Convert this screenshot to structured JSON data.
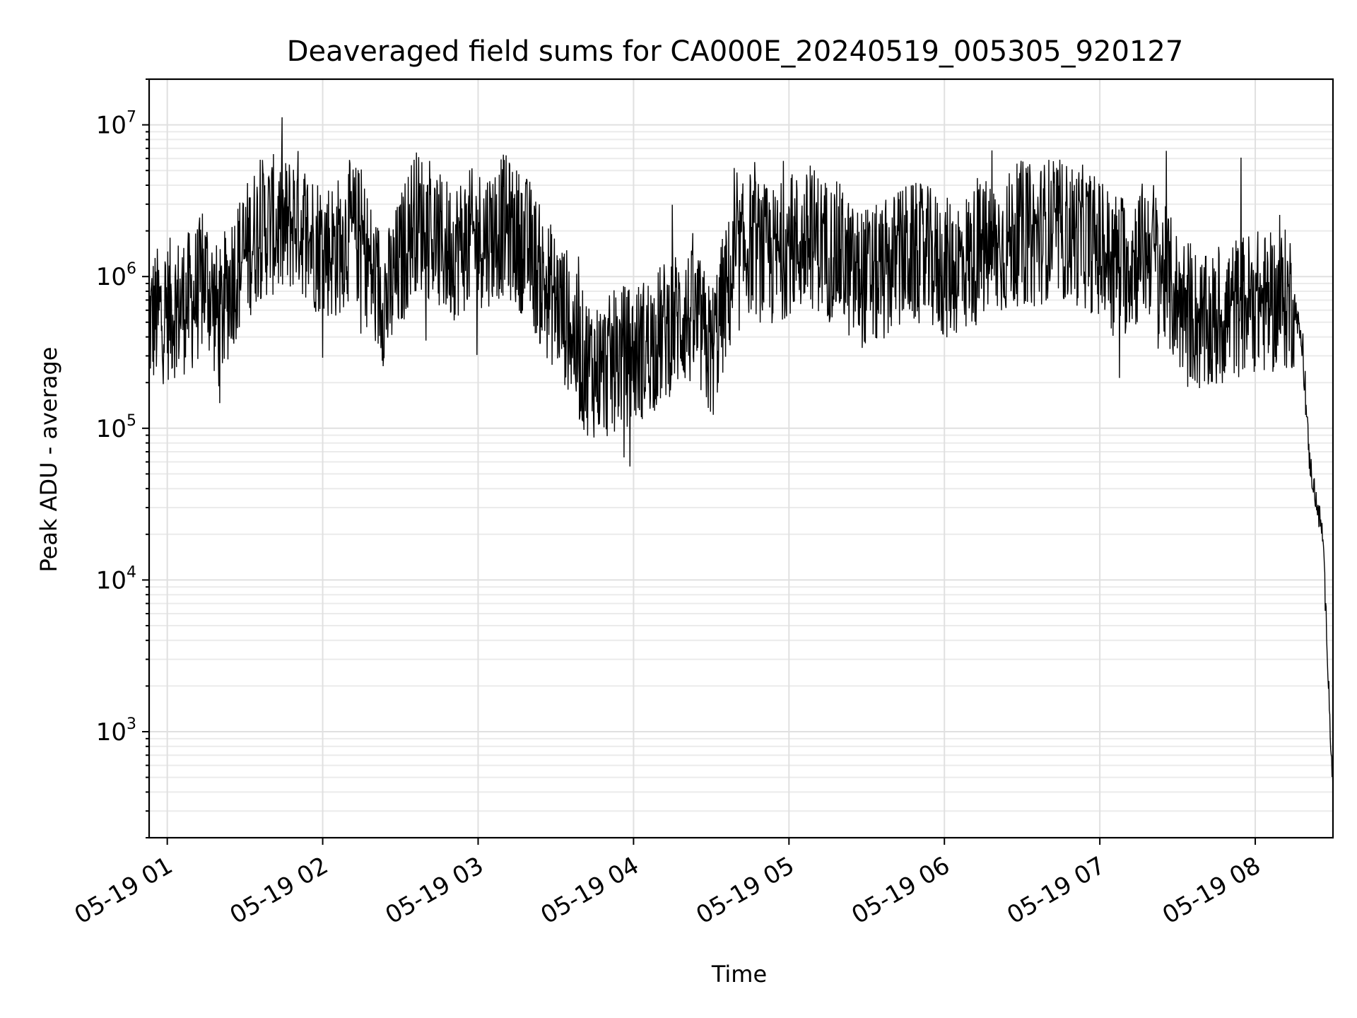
{
  "chart_data": {
    "type": "line",
    "title": "Deaveraged field sums for CA000E_20240519_005305_920127",
    "xlabel": "Time",
    "ylabel": "Peak ADU - average",
    "x_ticks": [
      "05-19 01",
      "05-19 02",
      "05-19 03",
      "05-19 04",
      "05-19 05",
      "05-19 06",
      "05-19 07",
      "05-19 08"
    ],
    "y_ticks": [
      {
        "value": 1000,
        "base": "10",
        "exp": "3"
      },
      {
        "value": 10000,
        "base": "10",
        "exp": "4"
      },
      {
        "value": 100000,
        "base": "10",
        "exp": "5"
      },
      {
        "value": 1000000,
        "base": "10",
        "exp": "6"
      },
      {
        "value": 10000000,
        "base": "10",
        "exp": "7"
      }
    ],
    "xlim": [
      "2024-05-19 00:53",
      "2024-05-19 08:30"
    ],
    "ylim": [
      200,
      20000000
    ],
    "yscale": "log",
    "grid": true,
    "line_color": "#000000",
    "series": [
      {
        "x": [
          "2024-05-19 00:53",
          "2024-05-19 01:00",
          "2024-05-19 01:10",
          "2024-05-19 01:15",
          "2024-05-19 01:20",
          "2024-05-19 01:25",
          "2024-05-19 01:30",
          "2024-05-19 01:35",
          "2024-05-19 01:40",
          "2024-05-19 01:45",
          "2024-05-19 01:50",
          "2024-05-19 01:55",
          "2024-05-19 02:00",
          "2024-05-19 02:05",
          "2024-05-19 02:10",
          "2024-05-19 02:15",
          "2024-05-19 02:20",
          "2024-05-19 02:25",
          "2024-05-19 02:30",
          "2024-05-19 02:35",
          "2024-05-19 02:40",
          "2024-05-19 02:45",
          "2024-05-19 02:50",
          "2024-05-19 02:55",
          "2024-05-19 03:00",
          "2024-05-19 03:05",
          "2024-05-19 03:10",
          "2024-05-19 03:15",
          "2024-05-19 03:20",
          "2024-05-19 03:25",
          "2024-05-19 03:30",
          "2024-05-19 03:35",
          "2024-05-19 03:40",
          "2024-05-19 03:45",
          "2024-05-19 03:50",
          "2024-05-19 03:55",
          "2024-05-19 04:00",
          "2024-05-19 04:05",
          "2024-05-19 04:10",
          "2024-05-19 04:15",
          "2024-05-19 04:20",
          "2024-05-19 04:25",
          "2024-05-19 04:30",
          "2024-05-19 04:35",
          "2024-05-19 04:40",
          "2024-05-19 04:45",
          "2024-05-19 04:50",
          "2024-05-19 04:55",
          "2024-05-19 05:00",
          "2024-05-19 05:05",
          "2024-05-19 05:10",
          "2024-05-19 05:15",
          "2024-05-19 05:20",
          "2024-05-19 05:25",
          "2024-05-19 05:30",
          "2024-05-19 05:35",
          "2024-05-19 05:40",
          "2024-05-19 05:45",
          "2024-05-19 05:50",
          "2024-05-19 05:55",
          "2024-05-19 06:00",
          "2024-05-19 06:05",
          "2024-05-19 06:10",
          "2024-05-19 06:15",
          "2024-05-19 06:20",
          "2024-05-19 06:25",
          "2024-05-19 06:30",
          "2024-05-19 06:35",
          "2024-05-19 06:40",
          "2024-05-19 06:45",
          "2024-05-19 06:50",
          "2024-05-19 06:55",
          "2024-05-19 07:00",
          "2024-05-19 07:05",
          "2024-05-19 07:10",
          "2024-05-19 07:15",
          "2024-05-19 07:20",
          "2024-05-19 07:25",
          "2024-05-19 07:30",
          "2024-05-19 07:35",
          "2024-05-19 07:40",
          "2024-05-19 07:45",
          "2024-05-19 07:50",
          "2024-05-19 07:55",
          "2024-05-19 08:00",
          "2024-05-19 08:05",
          "2024-05-19 08:10",
          "2024-05-19 08:15",
          "2024-05-19 08:18",
          "2024-05-19 08:21",
          "2024-05-19 08:24",
          "2024-05-19 08:26",
          "2024-05-19 08:28",
          "2024-05-19 08:29",
          "2024-05-19 08:30"
        ],
        "y": [
          500000,
          600000,
          700000,
          1000000,
          500000,
          1000000,
          1400000,
          2000000,
          2200000,
          2000000,
          2500000,
          1800000,
          1600000,
          1500000,
          2000000,
          1800000,
          900000,
          700000,
          1200000,
          2400000,
          2200000,
          1600000,
          1500000,
          1700000,
          1800000,
          1900000,
          2200000,
          1800000,
          1500000,
          900000,
          700000,
          500000,
          280000,
          250000,
          250000,
          300000,
          300000,
          350000,
          400000,
          500000,
          550000,
          480000,
          300000,
          700000,
          1200000,
          1700000,
          1400000,
          1300000,
          1700000,
          1600000,
          1800000,
          1500000,
          1400000,
          1000000,
          1000000,
          1000000,
          1200000,
          1400000,
          1400000,
          1300000,
          1100000,
          1200000,
          1300000,
          1500000,
          1500000,
          1700000,
          2000000,
          1800000,
          2100000,
          2000000,
          1900000,
          1800000,
          1500000,
          1300000,
          1200000,
          1400000,
          1600000,
          1000000,
          700000,
          600000,
          450000,
          500000,
          600000,
          650000,
          700000,
          650000,
          700000,
          700000,
          350000,
          60000,
          30000,
          20000,
          3000,
          1000,
          400
        ]
      }
    ]
  }
}
